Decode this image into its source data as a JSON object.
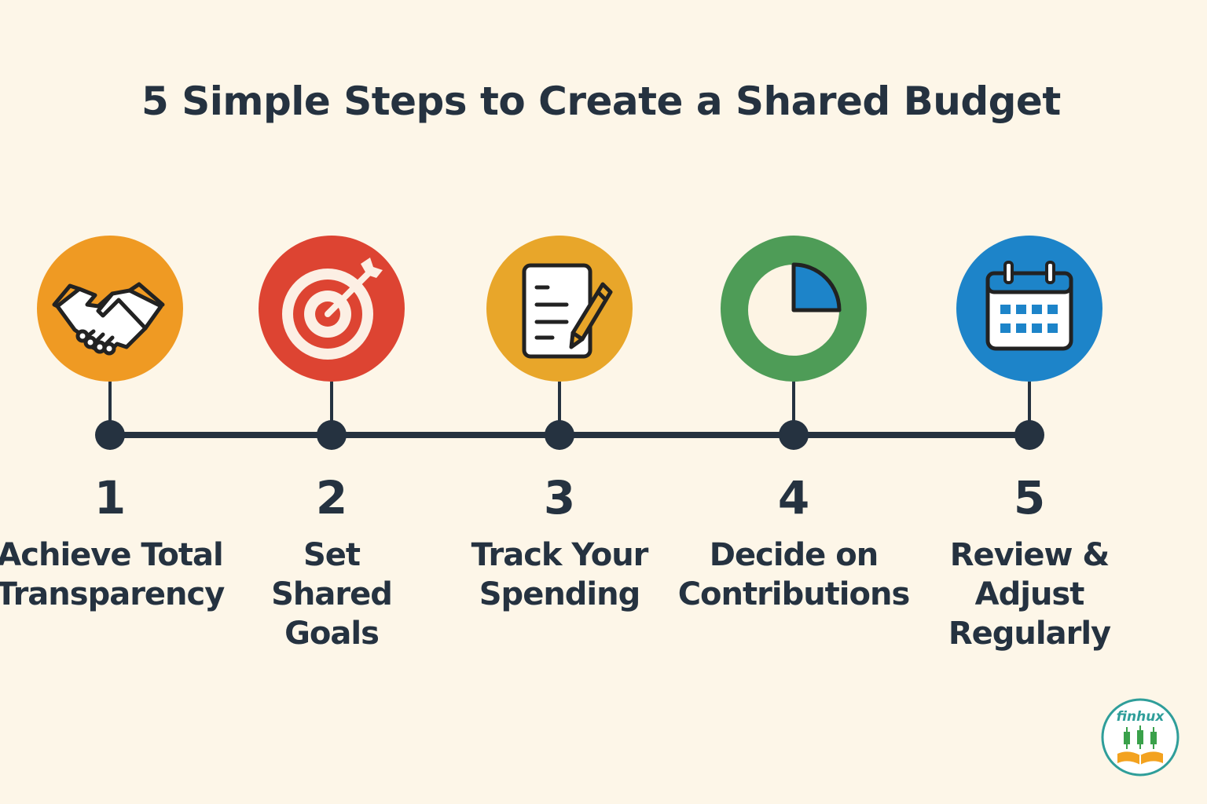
{
  "title": "5 Simple Steps to Create a Shared Budget",
  "colors": {
    "background": "#fdf6e8",
    "text": "#253240",
    "timeline": "#253240",
    "step1": "#ef9a23",
    "step2": "#dd4432",
    "step3": "#e8a62a",
    "step4": "#4e9c57",
    "step5": "#1d84c9"
  },
  "steps": [
    {
      "number": "1",
      "label": "Achieve Total\nTransparency",
      "icon": "handshake-icon",
      "color": "#ef9a23"
    },
    {
      "number": "2",
      "label": "Set\nShared\nGoals",
      "icon": "target-icon",
      "color": "#dd4432"
    },
    {
      "number": "3",
      "label": "Track Your\nSpending",
      "icon": "document-pencil-icon",
      "color": "#e8a62a"
    },
    {
      "number": "4",
      "label": "Decide on\nContributions",
      "icon": "pie-chart-icon",
      "color": "#4e9c57"
    },
    {
      "number": "5",
      "label": "Review &\nAdjust\nRegularly",
      "icon": "calendar-icon",
      "color": "#1d84c9"
    }
  ],
  "logo": {
    "text": "finhux",
    "icon": "finhux-logo-icon"
  }
}
